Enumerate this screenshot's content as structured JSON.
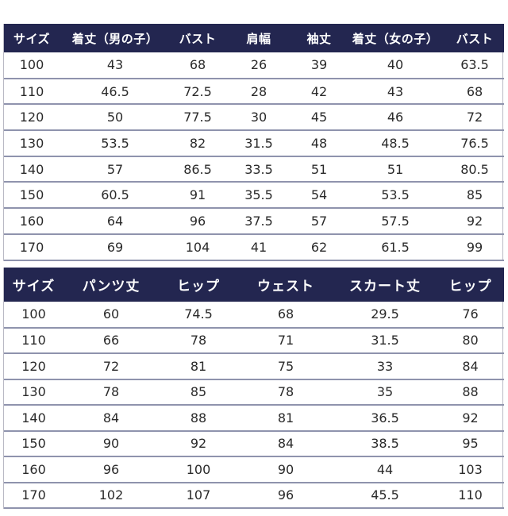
{
  "table_top": {
    "headers": [
      "サイズ",
      "着丈（男の子）",
      "バスト",
      "肩幅",
      "袖丈",
      "着丈（女の子）",
      "バスト"
    ],
    "rows": [
      [
        "100",
        "43",
        "68",
        "26",
        "39",
        "40",
        "63.5"
      ],
      [
        "110",
        "46.5",
        "72.5",
        "28",
        "42",
        "43",
        "68"
      ],
      [
        "120",
        "50",
        "77.5",
        "30",
        "45",
        "46",
        "72"
      ],
      [
        "130",
        "53.5",
        "82",
        "31.5",
        "48",
        "48.5",
        "76.5"
      ],
      [
        "140",
        "57",
        "86.5",
        "33.5",
        "51",
        "51",
        "80.5"
      ],
      [
        "150",
        "60.5",
        "91",
        "35.5",
        "54",
        "53.5",
        "85"
      ],
      [
        "160",
        "64",
        "96",
        "37.5",
        "57",
        "57.5",
        "92"
      ],
      [
        "170",
        "69",
        "104",
        "41",
        "62",
        "61.5",
        "99"
      ]
    ]
  },
  "table_bottom": {
    "headers": [
      "サイズ",
      "パンツ丈",
      "ヒップ",
      "ウェスト",
      "スカート丈",
      "ヒップ"
    ],
    "rows": [
      [
        "100",
        "60",
        "74.5",
        "68",
        "29.5",
        "76"
      ],
      [
        "110",
        "66",
        "78",
        "71",
        "31.5",
        "80"
      ],
      [
        "120",
        "72",
        "81",
        "75",
        "33",
        "84"
      ],
      [
        "130",
        "78",
        "85",
        "78",
        "35",
        "88"
      ],
      [
        "140",
        "84",
        "88",
        "81",
        "36.5",
        "92"
      ],
      [
        "150",
        "90",
        "92",
        "84",
        "38.5",
        "95"
      ],
      [
        "160",
        "96",
        "100",
        "90",
        "44",
        "103"
      ],
      [
        "170",
        "102",
        "107",
        "96",
        "45.5",
        "110"
      ]
    ]
  },
  "colors": {
    "header_background": "#232650",
    "header_text": "#ffffff",
    "row_divider": "#8f93ad",
    "cell_text": "#2a2a2a"
  }
}
